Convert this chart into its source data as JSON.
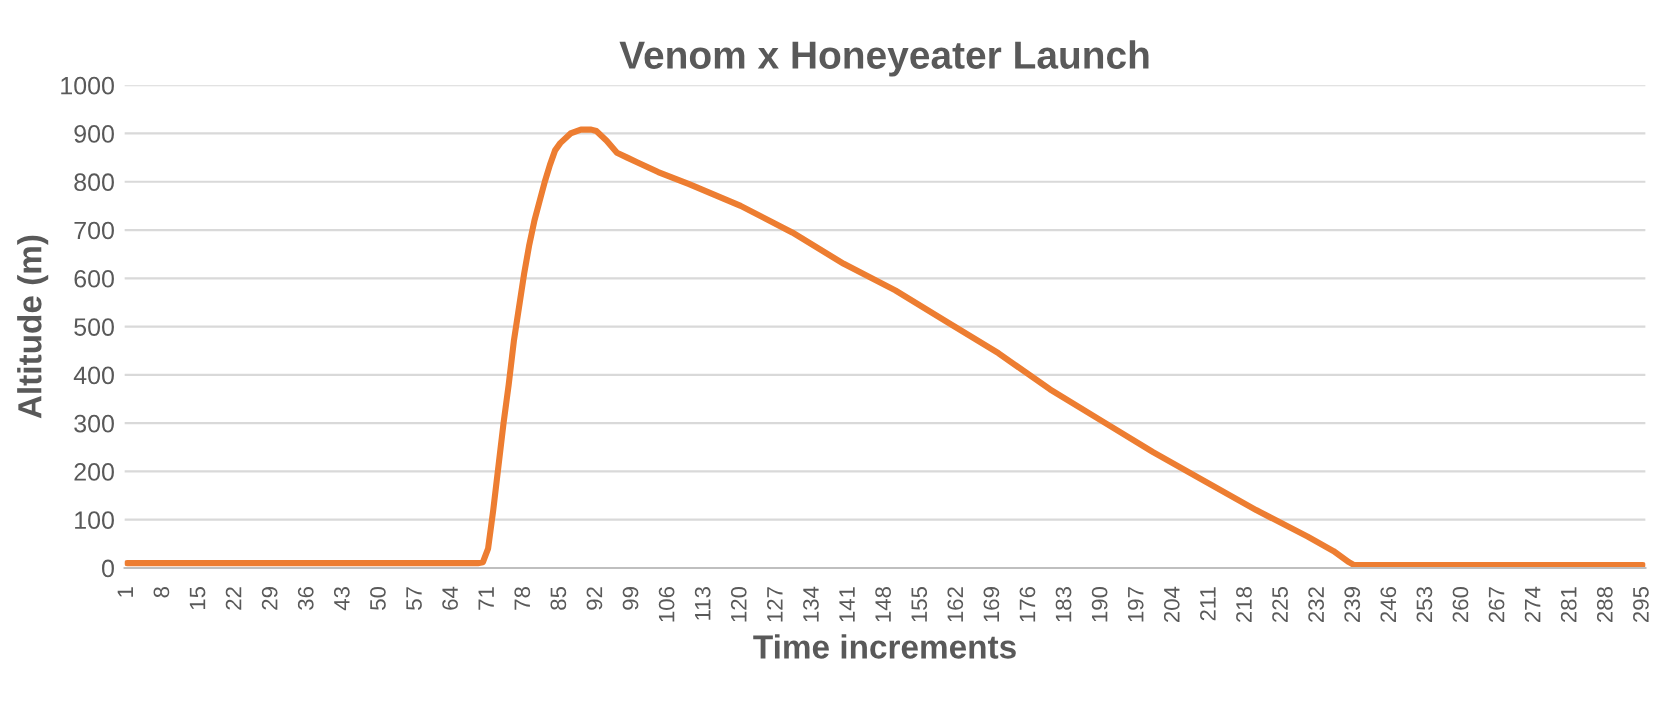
{
  "chart_data": {
    "type": "line",
    "title": "Venom x Honeyeater Launch",
    "xlabel": "Time increments",
    "ylabel": "Altitude (m)",
    "x": [
      1,
      20,
      40,
      60,
      69,
      70,
      71,
      72,
      73,
      74,
      75,
      76,
      77,
      78,
      79,
      80,
      81,
      82,
      83,
      84,
      85,
      87,
      89,
      91,
      92,
      94,
      96,
      98,
      100,
      104,
      110,
      120,
      130,
      140,
      150,
      160,
      170,
      180,
      190,
      200,
      210,
      220,
      230,
      235,
      238,
      239,
      260,
      295
    ],
    "series": [
      {
        "color": "#ed7d31",
        "values": [
          10,
          10,
          10,
          10,
          10,
          12,
          40,
          120,
          210,
          300,
          380,
          470,
          540,
          610,
          670,
          720,
          760,
          800,
          835,
          865,
          880,
          900,
          908,
          908,
          905,
          885,
          860,
          850,
          840,
          820,
          795,
          750,
          695,
          630,
          575,
          510,
          445,
          370,
          305,
          240,
          180,
          120,
          65,
          35,
          12,
          6,
          6,
          6
        ]
      }
    ],
    "xlim": [
      0.5,
      295.5
    ],
    "xticks": [
      1,
      8,
      15,
      22,
      29,
      36,
      43,
      50,
      57,
      64,
      71,
      78,
      85,
      92,
      99,
      106,
      113,
      120,
      127,
      134,
      141,
      148,
      155,
      162,
      169,
      176,
      183,
      190,
      197,
      204,
      211,
      218,
      225,
      232,
      239,
      246,
      253,
      260,
      267,
      274,
      281,
      288,
      295
    ],
    "ylim": [
      0,
      1000
    ],
    "yticks": [
      0,
      100,
      200,
      300,
      400,
      500,
      600,
      700,
      800,
      900,
      1000
    ],
    "grid": "y",
    "marker": "none",
    "line_style": "solid"
  }
}
